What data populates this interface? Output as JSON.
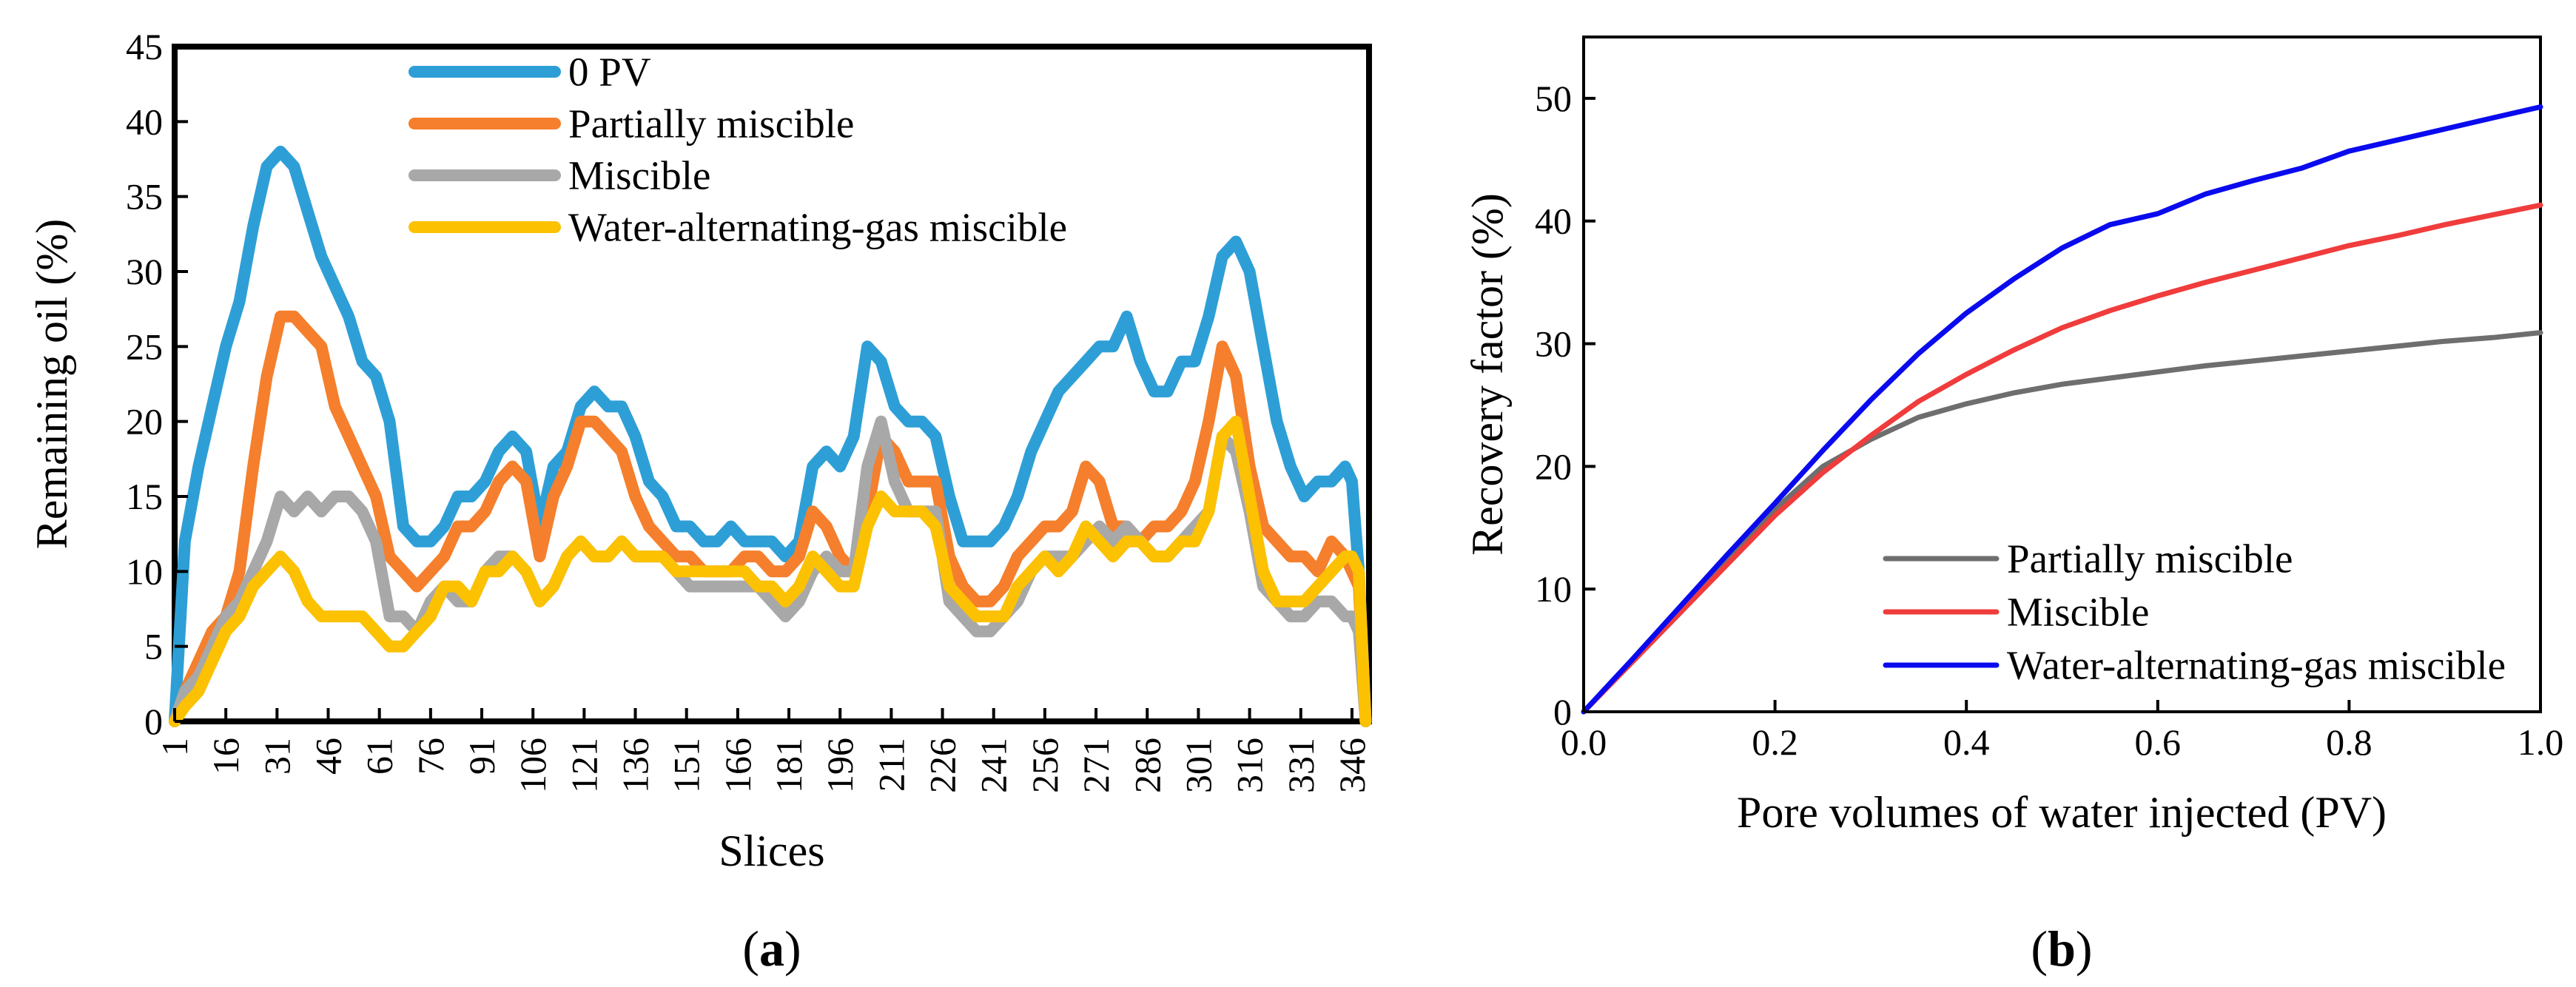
{
  "figure": {
    "panel_a_label": {
      "open": "(",
      "letter": "a",
      "close": ")"
    },
    "panel_b_label": {
      "open": "(",
      "letter": "b",
      "close": ")"
    }
  },
  "chart_data": [
    {
      "id": "a",
      "type": "line",
      "title": "",
      "xlabel": "Slices",
      "ylabel": "Remaining oil (%)",
      "xlim": [
        1,
        351
      ],
      "ylim": [
        0,
        45
      ],
      "grid": false,
      "legend_position": "top",
      "x_tick_labels": [
        "1",
        "16",
        "31",
        "46",
        "61",
        "76",
        "91",
        "106",
        "121",
        "136",
        "151",
        "166",
        "181",
        "196",
        "211",
        "226",
        "241",
        "256",
        "271",
        "286",
        "301",
        "316",
        "331",
        "346"
      ],
      "y_tick_labels": [
        "0",
        "5",
        "10",
        "15",
        "20",
        "25",
        "30",
        "35",
        "40",
        "45"
      ],
      "x": [
        1,
        4,
        8,
        12,
        16,
        20,
        24,
        28,
        32,
        36,
        40,
        44,
        48,
        52,
        56,
        60,
        64,
        68,
        72,
        76,
        80,
        84,
        88,
        92,
        96,
        100,
        104,
        108,
        112,
        116,
        120,
        124,
        128,
        132,
        136,
        140,
        144,
        148,
        152,
        156,
        160,
        164,
        168,
        172,
        176,
        180,
        184,
        188,
        192,
        196,
        200,
        204,
        208,
        212,
        216,
        220,
        224,
        228,
        232,
        236,
        240,
        244,
        248,
        252,
        256,
        260,
        264,
        268,
        272,
        276,
        280,
        284,
        288,
        292,
        296,
        300,
        304,
        308,
        312,
        316,
        320,
        324,
        328,
        332,
        336,
        340,
        344,
        346,
        348,
        350
      ],
      "series": [
        {
          "name": "0 PV",
          "color": "#2e9fd6",
          "values": [
            0,
            12,
            17,
            21,
            25,
            28,
            33,
            37,
            38,
            37,
            34,
            31,
            29,
            27,
            24,
            23,
            20,
            13,
            12,
            12,
            13,
            15,
            15,
            16,
            18,
            19,
            18,
            13,
            17,
            18,
            21,
            22,
            21,
            21,
            19,
            16,
            15,
            13,
            13,
            12,
            12,
            13,
            12,
            12,
            12,
            11,
            12,
            17,
            18,
            17,
            19,
            25,
            24,
            21,
            20,
            20,
            19,
            15,
            12,
            12,
            12,
            13,
            15,
            18,
            20,
            22,
            23,
            24,
            25,
            25,
            27,
            24,
            22,
            22,
            24,
            24,
            27,
            31,
            32,
            30,
            25,
            20,
            17,
            15,
            16,
            16,
            17,
            16,
            10,
            0
          ]
        },
        {
          "name": "Partially miscible",
          "color": "#f57f2c",
          "values": [
            0,
            2,
            4,
            6,
            7,
            10,
            17,
            23,
            27,
            27,
            26,
            25,
            21,
            19,
            17,
            15,
            11,
            10,
            9,
            10,
            11,
            13,
            13,
            14,
            16,
            17,
            16,
            11,
            15,
            17,
            20,
            20,
            19,
            18,
            15,
            13,
            12,
            11,
            11,
            10,
            10,
            10,
            11,
            11,
            10,
            10,
            11,
            14,
            13,
            11,
            10,
            14,
            19,
            18,
            16,
            16,
            16,
            11,
            9,
            8,
            8,
            9,
            11,
            12,
            13,
            13,
            14,
            17,
            16,
            13,
            13,
            12,
            13,
            13,
            14,
            16,
            20,
            25,
            23,
            17,
            13,
            12,
            11,
            11,
            10,
            12,
            11,
            10,
            9,
            0
          ]
        },
        {
          "name": "Miscible",
          "color": "#a8a8a8",
          "values": [
            0,
            2,
            3,
            5,
            7,
            8,
            10,
            12,
            15,
            14,
            15,
            14,
            15,
            15,
            14,
            12,
            7,
            7,
            6,
            8,
            9,
            8,
            8,
            10,
            11,
            11,
            10,
            8,
            9,
            11,
            12,
            11,
            11,
            12,
            11,
            11,
            11,
            10,
            9,
            9,
            9,
            9,
            9,
            9,
            8,
            7,
            8,
            10,
            11,
            10,
            10,
            17,
            20,
            16,
            14,
            14,
            14,
            8,
            7,
            6,
            6,
            7,
            8,
            10,
            11,
            11,
            11,
            12,
            13,
            12,
            13,
            12,
            11,
            11,
            12,
            13,
            14,
            19,
            18,
            14,
            9,
            8,
            7,
            7,
            8,
            8,
            7,
            7,
            6,
            0
          ]
        },
        {
          "name": "Water-alternating-gas miscible",
          "color": "#fcc100",
          "values": [
            0,
            1,
            2,
            4,
            6,
            7,
            9,
            10,
            11,
            10,
            8,
            7,
            7,
            7,
            7,
            6,
            5,
            5,
            6,
            7,
            9,
            9,
            8,
            10,
            10,
            11,
            10,
            8,
            9,
            11,
            12,
            11,
            11,
            12,
            11,
            11,
            11,
            10,
            10,
            10,
            10,
            10,
            10,
            9,
            9,
            8,
            9,
            11,
            10,
            9,
            9,
            13,
            15,
            14,
            14,
            14,
            13,
            9,
            8,
            7,
            7,
            7,
            9,
            10,
            11,
            10,
            11,
            13,
            12,
            11,
            12,
            12,
            11,
            11,
            12,
            12,
            14,
            19,
            20,
            15,
            10,
            8,
            8,
            8,
            9,
            10,
            11,
            11,
            10,
            0
          ]
        }
      ]
    },
    {
      "id": "b",
      "type": "line",
      "title": "",
      "xlabel": "Pore volumes of water injected (PV)",
      "ylabel": "Recovery factor (%)",
      "xlim": [
        0,
        1.0
      ],
      "ylim": [
        0,
        55
      ],
      "grid": false,
      "legend_position": "bottom-right",
      "x_tick_labels": [
        "0.0",
        "0.2",
        "0.4",
        "0.6",
        "0.8",
        "1.0"
      ],
      "y_tick_labels": [
        "0",
        "10",
        "20",
        "30",
        "40",
        "50"
      ],
      "x": [
        0,
        0.05,
        0.1,
        0.15,
        0.2,
        0.25,
        0.3,
        0.35,
        0.4,
        0.45,
        0.5,
        0.55,
        0.6,
        0.65,
        0.7,
        0.75,
        0.8,
        0.85,
        0.9,
        0.95,
        1.0
      ],
      "series": [
        {
          "name": "Partially miscible",
          "color": "#6e6e6e",
          "values": [
            0,
            4,
            8,
            12.2,
            16.5,
            20,
            22.2,
            24,
            25.1,
            26,
            26.7,
            27.2,
            27.7,
            28.2,
            28.6,
            29,
            29.4,
            29.8,
            30.2,
            30.5,
            30.9
          ]
        },
        {
          "name": "Miscible",
          "color": "#f03c3c",
          "values": [
            0,
            4,
            8,
            12,
            16,
            19.5,
            22.5,
            25.3,
            27.5,
            29.5,
            31.3,
            32.7,
            33.9,
            35,
            36,
            37,
            38,
            38.8,
            39.7,
            40.5,
            41.3
          ]
        },
        {
          "name": "Water-alternating-gas miscible",
          "color": "#0a0aef",
          "values": [
            0,
            4.2,
            8.5,
            12.8,
            17,
            21.3,
            25.4,
            29.2,
            32.5,
            35.3,
            37.8,
            39.7,
            40.6,
            42.2,
            43.3,
            44.3,
            45.7,
            46.6,
            47.5,
            48.4,
            49.3
          ]
        }
      ]
    }
  ]
}
